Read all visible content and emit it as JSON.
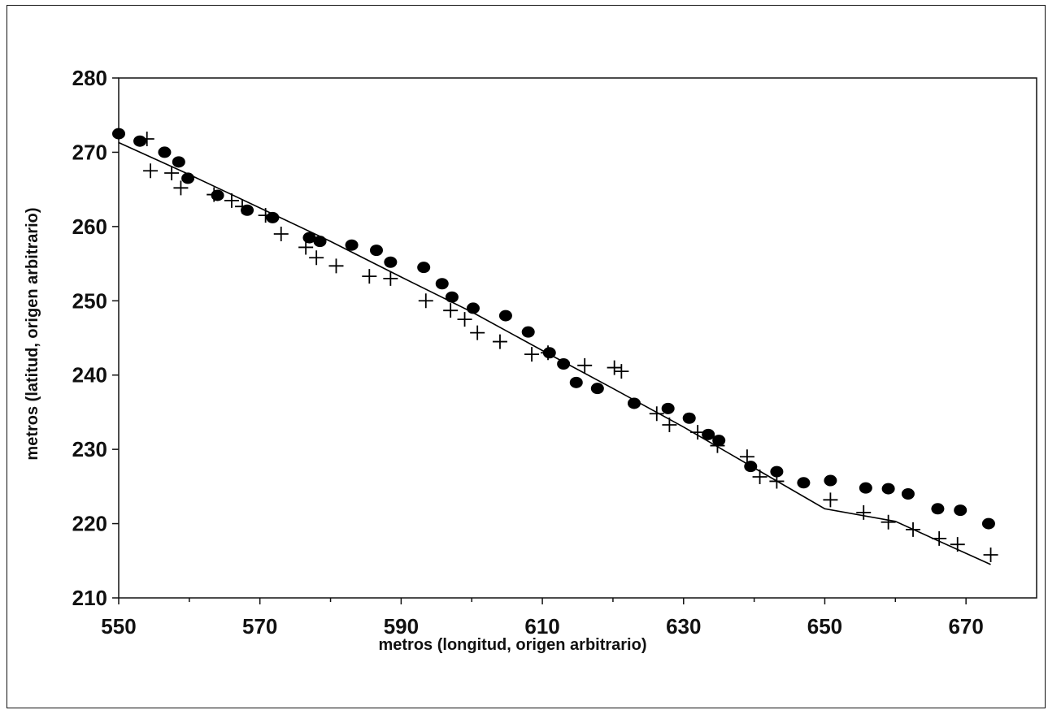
{
  "chart_data": {
    "type": "scatter",
    "title": "",
    "xlabel": "metros (longitud, origen arbitrario)",
    "ylabel": "metros (latitud, origen arbitrario)",
    "xlim": [
      550,
      680
    ],
    "ylim": [
      210,
      280
    ],
    "xticks": [
      550,
      570,
      590,
      610,
      630,
      650,
      670
    ],
    "yticks": [
      210,
      220,
      230,
      240,
      250,
      260,
      270,
      280
    ],
    "grid": false,
    "legend": "none",
    "series": [
      {
        "marker": "filled-ellipse",
        "color": "#000000",
        "points": [
          [
            550.0,
            272.5
          ],
          [
            553.0,
            271.5
          ],
          [
            556.5,
            270.0
          ],
          [
            558.5,
            268.7
          ],
          [
            559.8,
            266.5
          ],
          [
            564.0,
            264.2
          ],
          [
            568.2,
            262.2
          ],
          [
            571.8,
            261.2
          ],
          [
            577.0,
            258.5
          ],
          [
            578.5,
            258.0
          ],
          [
            583.0,
            257.5
          ],
          [
            586.5,
            256.8
          ],
          [
            588.5,
            255.2
          ],
          [
            593.2,
            254.5
          ],
          [
            595.8,
            252.3
          ],
          [
            597.2,
            250.5
          ],
          [
            600.2,
            249.0
          ],
          [
            604.8,
            248.0
          ],
          [
            608.0,
            245.8
          ],
          [
            611.0,
            243.0
          ],
          [
            613.0,
            241.5
          ],
          [
            614.8,
            239.0
          ],
          [
            617.8,
            238.2
          ],
          [
            623.0,
            236.2
          ],
          [
            627.8,
            235.5
          ],
          [
            630.8,
            234.2
          ],
          [
            633.5,
            232.0
          ],
          [
            635.0,
            231.2
          ],
          [
            639.5,
            227.7
          ],
          [
            643.2,
            227.0
          ],
          [
            647.0,
            225.5
          ],
          [
            650.8,
            225.8
          ],
          [
            655.8,
            224.8
          ],
          [
            659.0,
            224.7
          ],
          [
            661.8,
            224.0
          ],
          [
            666.0,
            222.0
          ],
          [
            669.2,
            221.8
          ],
          [
            673.2,
            220.0
          ]
        ]
      },
      {
        "marker": "plus",
        "color": "#000000",
        "points": [
          [
            554.0,
            271.8
          ],
          [
            554.5,
            267.5
          ],
          [
            557.5,
            267.2
          ],
          [
            558.8,
            265.2
          ],
          [
            563.5,
            264.3
          ],
          [
            566.0,
            263.5
          ],
          [
            567.5,
            262.7
          ],
          [
            570.8,
            261.5
          ],
          [
            573.0,
            259.0
          ],
          [
            576.5,
            257.2
          ],
          [
            578.0,
            255.8
          ],
          [
            580.8,
            254.7
          ],
          [
            585.5,
            253.3
          ],
          [
            588.5,
            253.0
          ],
          [
            593.5,
            250.0
          ],
          [
            597.0,
            248.7
          ],
          [
            599.0,
            247.5
          ],
          [
            600.8,
            245.7
          ],
          [
            604.0,
            244.5
          ],
          [
            608.5,
            242.8
          ],
          [
            610.8,
            243.0
          ],
          [
            616.0,
            241.3
          ],
          [
            620.2,
            241.0
          ],
          [
            621.2,
            240.5
          ],
          [
            626.2,
            234.8
          ],
          [
            628.0,
            233.3
          ],
          [
            632.0,
            232.3
          ],
          [
            634.8,
            230.5
          ],
          [
            639.0,
            229.0
          ],
          [
            640.8,
            226.3
          ],
          [
            643.2,
            225.7
          ],
          [
            650.8,
            223.2
          ],
          [
            655.5,
            221.5
          ],
          [
            659.0,
            220.2
          ],
          [
            662.5,
            219.2
          ],
          [
            666.2,
            218.0
          ],
          [
            668.8,
            217.2
          ],
          [
            673.5,
            215.8
          ]
        ]
      },
      {
        "type": "line",
        "color": "#000000",
        "points": [
          [
            550.0,
            271.3
          ],
          [
            560.0,
            267.0
          ],
          [
            570.0,
            262.5
          ],
          [
            580.0,
            258.0
          ],
          [
            590.0,
            253.2
          ],
          [
            600.0,
            248.5
          ],
          [
            610.0,
            243.3
          ],
          [
            620.0,
            238.2
          ],
          [
            630.0,
            233.0
          ],
          [
            640.0,
            227.5
          ],
          [
            650.0,
            222.0
          ],
          [
            660.0,
            220.3
          ],
          [
            673.5,
            214.5
          ]
        ]
      }
    ]
  }
}
